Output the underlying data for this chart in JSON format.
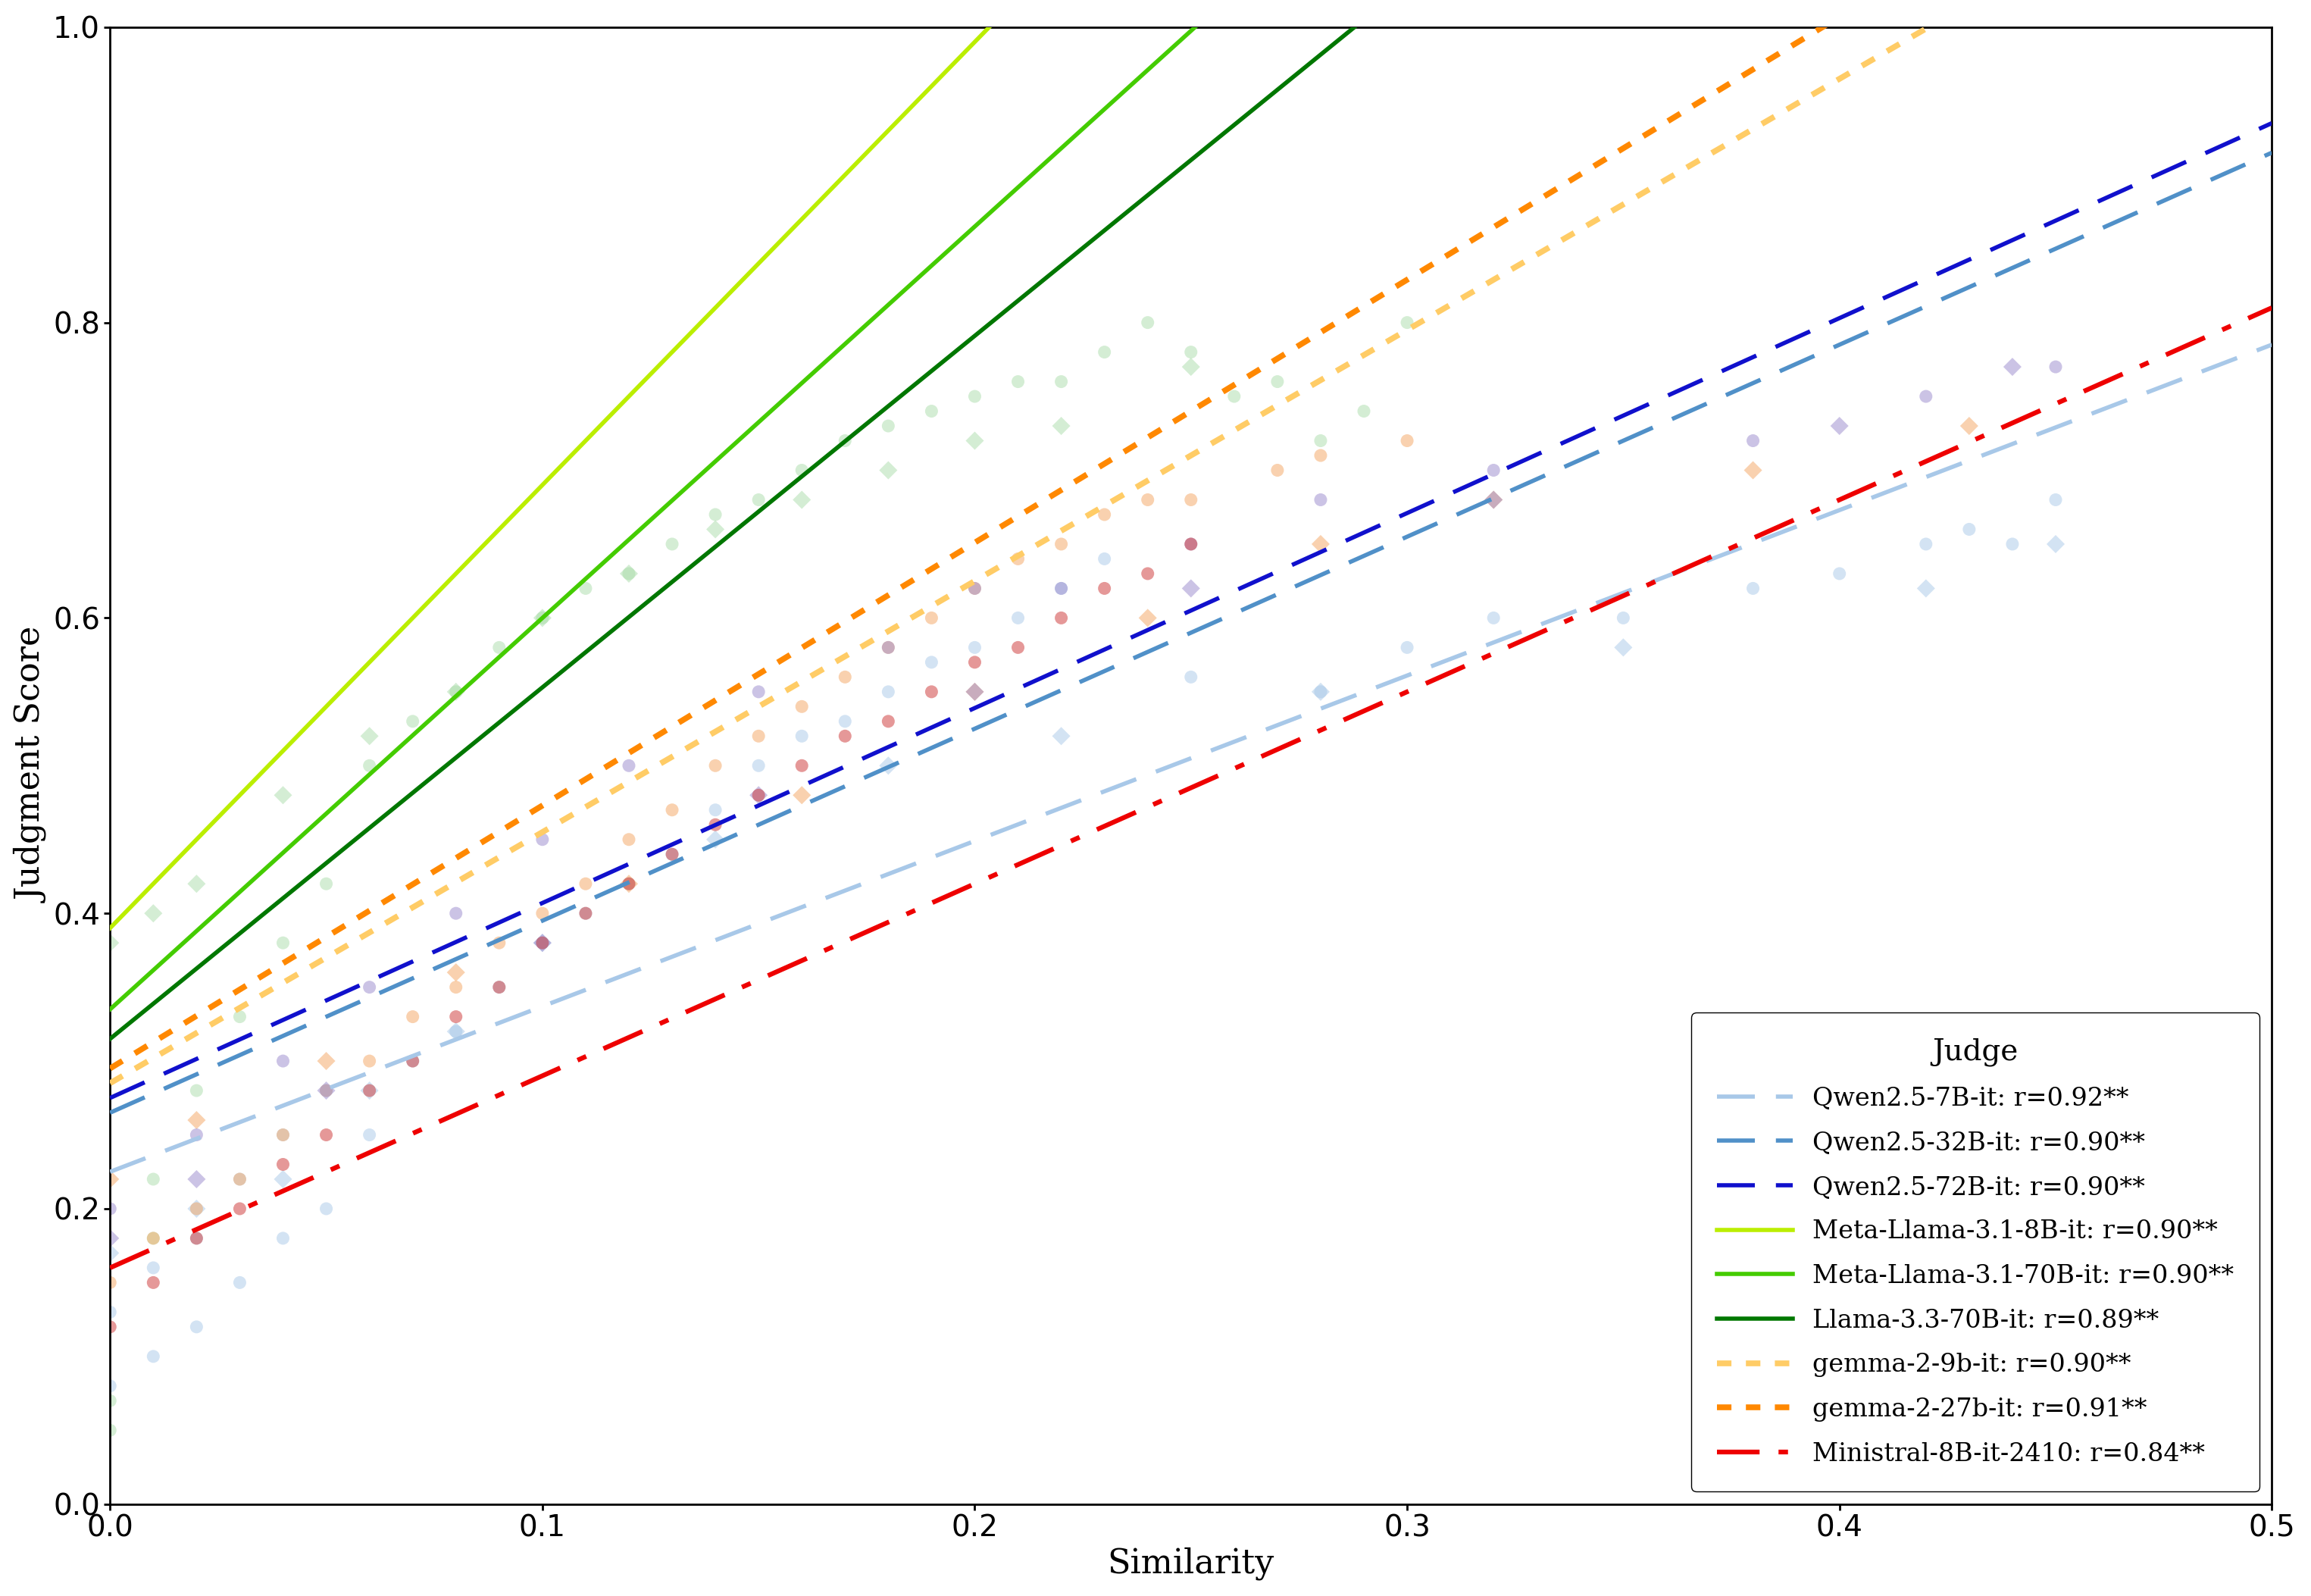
{
  "title": "",
  "xlabel": "Similarity",
  "ylabel": "Judgment Score",
  "xlim": [
    0.0,
    0.5
  ],
  "ylim": [
    0.0,
    1.0
  ],
  "xticks": [
    0.0,
    0.1,
    0.2,
    0.3,
    0.4,
    0.5
  ],
  "yticks": [
    0.0,
    0.2,
    0.4,
    0.6,
    0.8,
    1.0
  ],
  "legend_title": "Judge",
  "lines": [
    {
      "label": "Qwen2.5-7B-it: r=0.92**",
      "color": "#A8C8E8",
      "linestyle": "dashed",
      "linewidth": 4.0,
      "slope": 1.12,
      "intercept": 0.225
    },
    {
      "label": "Qwen2.5-32B-it: r=0.90**",
      "color": "#5090C8",
      "linestyle": "dashed",
      "linewidth": 4.0,
      "slope": 1.3,
      "intercept": 0.265
    },
    {
      "label": "Qwen2.5-72B-it: r=0.90**",
      "color": "#1010CC",
      "linestyle": "dashed",
      "linewidth": 4.0,
      "slope": 1.32,
      "intercept": 0.275
    },
    {
      "label": "Meta-Llama-3.1-8B-it: r=0.90**",
      "color": "#BBEE00",
      "linestyle": "solid",
      "linewidth": 4.0,
      "slope": 3.0,
      "intercept": 0.39
    },
    {
      "label": "Meta-Llama-3.1-70B-it: r=0.90**",
      "color": "#44CC00",
      "linestyle": "solid",
      "linewidth": 4.0,
      "slope": 2.65,
      "intercept": 0.335
    },
    {
      "label": "Llama-3.3-70B-it: r=0.89**",
      "color": "#007700",
      "linestyle": "solid",
      "linewidth": 4.0,
      "slope": 2.38,
      "intercept": 0.315
    },
    {
      "label": "gemma-2-9b-it: r=0.90**",
      "color": "#FFCC66",
      "linestyle": "dotted",
      "linewidth": 5.5,
      "slope": 1.7,
      "intercept": 0.285
    },
    {
      "label": "gemma-2-27b-it: r=0.91**",
      "color": "#FF8800",
      "linestyle": "dotted",
      "linewidth": 5.5,
      "slope": 1.78,
      "intercept": 0.295
    },
    {
      "label": "Ministral-8B-it-2410: r=0.84**",
      "color": "#EE0000",
      "linestyle": "dashdot",
      "linewidth": 4.5,
      "slope": 1.3,
      "intercept": 0.16
    }
  ],
  "scatter_groups": [
    {
      "color": "#A8C8E8",
      "marker": "o",
      "alpha": 0.5,
      "size": 150,
      "x": [
        0.0,
        0.0,
        0.01,
        0.01,
        0.02,
        0.02,
        0.03,
        0.03,
        0.04,
        0.04,
        0.05,
        0.05,
        0.06,
        0.07,
        0.08,
        0.09,
        0.1,
        0.11,
        0.12,
        0.13,
        0.14,
        0.15,
        0.16,
        0.17,
        0.18,
        0.19,
        0.2,
        0.21,
        0.22,
        0.23,
        0.25,
        0.28,
        0.3,
        0.32,
        0.35,
        0.38,
        0.4,
        0.42,
        0.43,
        0.44,
        0.45
      ],
      "y": [
        0.08,
        0.13,
        0.1,
        0.16,
        0.12,
        0.18,
        0.15,
        0.22,
        0.18,
        0.25,
        0.2,
        0.28,
        0.25,
        0.3,
        0.32,
        0.35,
        0.38,
        0.4,
        0.42,
        0.44,
        0.47,
        0.5,
        0.52,
        0.53,
        0.55,
        0.57,
        0.58,
        0.6,
        0.62,
        0.64,
        0.56,
        0.55,
        0.58,
        0.6,
        0.6,
        0.62,
        0.63,
        0.65,
        0.66,
        0.65,
        0.68
      ]
    },
    {
      "color": "#A8C8E8",
      "marker": "D",
      "alpha": 0.5,
      "size": 150,
      "x": [
        0.0,
        0.02,
        0.04,
        0.06,
        0.08,
        0.1,
        0.14,
        0.18,
        0.22,
        0.28,
        0.35,
        0.42,
        0.45
      ],
      "y": [
        0.17,
        0.2,
        0.22,
        0.28,
        0.32,
        0.38,
        0.45,
        0.5,
        0.52,
        0.55,
        0.58,
        0.62,
        0.65
      ]
    },
    {
      "color": "#AADDAA",
      "marker": "o",
      "alpha": 0.5,
      "size": 150,
      "x": [
        0.0,
        0.0,
        0.01,
        0.01,
        0.02,
        0.03,
        0.04,
        0.05,
        0.06,
        0.07,
        0.08,
        0.09,
        0.1,
        0.11,
        0.12,
        0.13,
        0.14,
        0.15,
        0.16,
        0.17,
        0.18,
        0.19,
        0.2,
        0.21,
        0.22,
        0.23,
        0.24,
        0.25,
        0.26,
        0.27,
        0.28,
        0.29,
        0.3
      ],
      "y": [
        0.05,
        0.07,
        0.18,
        0.22,
        0.28,
        0.33,
        0.38,
        0.42,
        0.5,
        0.53,
        0.55,
        0.58,
        0.6,
        0.62,
        0.63,
        0.65,
        0.67,
        0.68,
        0.7,
        0.72,
        0.73,
        0.74,
        0.75,
        0.76,
        0.76,
        0.78,
        0.8,
        0.78,
        0.75,
        0.76,
        0.72,
        0.74,
        0.8
      ]
    },
    {
      "color": "#AADDAA",
      "marker": "D",
      "alpha": 0.5,
      "size": 150,
      "x": [
        0.0,
        0.01,
        0.02,
        0.04,
        0.06,
        0.08,
        0.1,
        0.12,
        0.14,
        0.16,
        0.18,
        0.2,
        0.22,
        0.25
      ],
      "y": [
        0.38,
        0.4,
        0.42,
        0.48,
        0.52,
        0.55,
        0.6,
        0.63,
        0.66,
        0.68,
        0.7,
        0.72,
        0.73,
        0.77
      ]
    },
    {
      "color": "#F4A460",
      "marker": "o",
      "alpha": 0.5,
      "size": 150,
      "x": [
        0.0,
        0.01,
        0.02,
        0.03,
        0.04,
        0.05,
        0.06,
        0.07,
        0.08,
        0.09,
        0.1,
        0.11,
        0.12,
        0.13,
        0.14,
        0.15,
        0.16,
        0.17,
        0.18,
        0.19,
        0.2,
        0.21,
        0.22,
        0.23,
        0.24,
        0.25,
        0.27,
        0.28,
        0.3
      ],
      "y": [
        0.15,
        0.18,
        0.2,
        0.22,
        0.25,
        0.28,
        0.3,
        0.33,
        0.35,
        0.38,
        0.4,
        0.42,
        0.45,
        0.47,
        0.5,
        0.52,
        0.54,
        0.56,
        0.58,
        0.6,
        0.62,
        0.64,
        0.65,
        0.67,
        0.68,
        0.68,
        0.7,
        0.71,
        0.72
      ]
    },
    {
      "color": "#F4A460",
      "marker": "D",
      "alpha": 0.5,
      "size": 150,
      "x": [
        0.0,
        0.02,
        0.05,
        0.08,
        0.12,
        0.16,
        0.2,
        0.24,
        0.28,
        0.32,
        0.38,
        0.43
      ],
      "y": [
        0.22,
        0.26,
        0.3,
        0.36,
        0.42,
        0.48,
        0.55,
        0.6,
        0.65,
        0.68,
        0.7,
        0.73
      ]
    },
    {
      "color": "#9988CC",
      "marker": "o",
      "alpha": 0.5,
      "size": 150,
      "x": [
        0.0,
        0.02,
        0.04,
        0.06,
        0.08,
        0.1,
        0.12,
        0.15,
        0.18,
        0.2,
        0.22,
        0.25,
        0.28,
        0.32,
        0.38,
        0.42,
        0.45
      ],
      "y": [
        0.2,
        0.25,
        0.3,
        0.35,
        0.4,
        0.45,
        0.5,
        0.55,
        0.58,
        0.62,
        0.62,
        0.65,
        0.68,
        0.7,
        0.72,
        0.75,
        0.77
      ]
    },
    {
      "color": "#9988CC",
      "marker": "D",
      "alpha": 0.5,
      "size": 150,
      "x": [
        0.0,
        0.02,
        0.05,
        0.1,
        0.15,
        0.2,
        0.25,
        0.32,
        0.4,
        0.44
      ],
      "y": [
        0.18,
        0.22,
        0.28,
        0.38,
        0.48,
        0.55,
        0.62,
        0.68,
        0.73,
        0.77
      ]
    },
    {
      "color": "#CC3333",
      "marker": "o",
      "alpha": 0.5,
      "size": 150,
      "x": [
        0.0,
        0.01,
        0.02,
        0.03,
        0.04,
        0.05,
        0.06,
        0.07,
        0.08,
        0.09,
        0.1,
        0.11,
        0.12,
        0.13,
        0.14,
        0.15,
        0.16,
        0.17,
        0.18,
        0.19,
        0.2,
        0.21,
        0.22,
        0.23,
        0.24,
        0.25
      ],
      "y": [
        0.12,
        0.15,
        0.18,
        0.2,
        0.23,
        0.25,
        0.28,
        0.3,
        0.33,
        0.35,
        0.38,
        0.4,
        0.42,
        0.44,
        0.46,
        0.48,
        0.5,
        0.52,
        0.53,
        0.55,
        0.57,
        0.58,
        0.6,
        0.62,
        0.63,
        0.65
      ]
    }
  ],
  "background_color": "#ffffff",
  "axis_label_fontsize": 32,
  "tick_fontsize": 28,
  "legend_fontsize": 24,
  "legend_title_fontsize": 28
}
